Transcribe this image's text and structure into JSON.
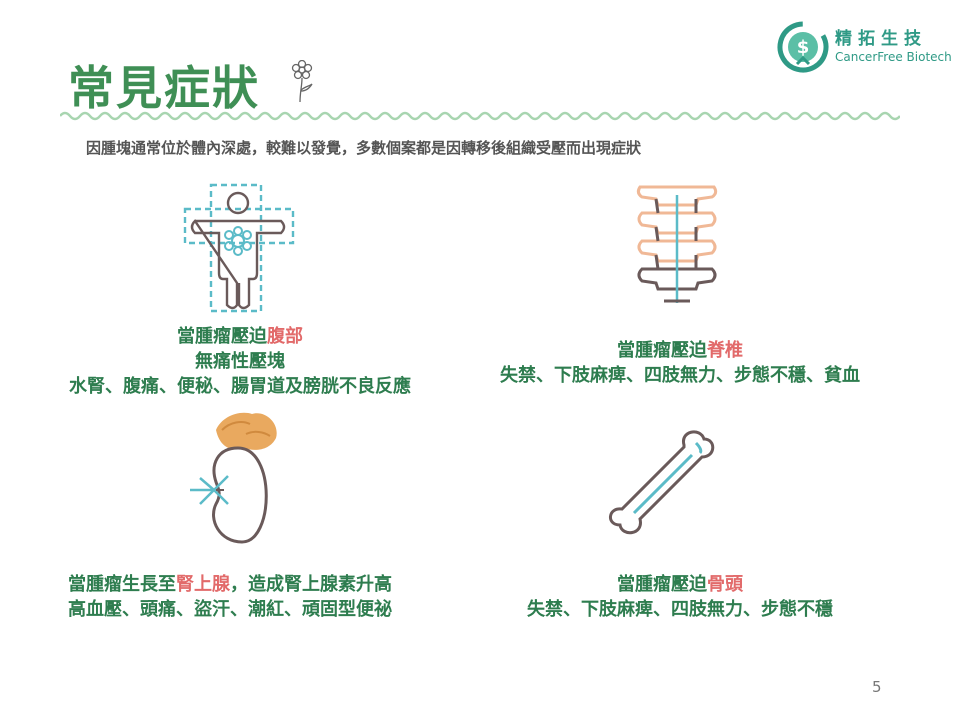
{
  "header": {
    "title": "常見症狀",
    "subtitle": "因腫塊通常位於體內深處，較難以發覺，多數個案都是因轉移後組織受壓而出現症狀"
  },
  "logo": {
    "name_cn": "精拓生技",
    "name_en": "CancerFree Biotech"
  },
  "sections": [
    {
      "prefix": "當腫瘤壓迫",
      "highlight": "腹部",
      "suffix": "",
      "lines": [
        "無痛性壓塊",
        "水腎、腹痛、便秘、腸胃道及膀胱不良反應"
      ],
      "icon": "abdomen-body-icon"
    },
    {
      "prefix": "當腫瘤壓迫",
      "highlight": "脊椎",
      "suffix": "",
      "lines": [
        "失禁、下肢麻痺、四肢無力、步態不穩、貧血"
      ],
      "icon": "spine-icon"
    },
    {
      "prefix": "當腫瘤生長至",
      "highlight": "腎上腺",
      "suffix": "，造成腎上腺素升高",
      "lines": [
        "高血壓、頭痛、盜汗、潮紅、頑固型便祕"
      ],
      "icon": "kidney-adrenal-icon"
    },
    {
      "prefix": "當腫瘤壓迫",
      "highlight": "骨頭",
      "suffix": "",
      "lines": [
        "失禁、下肢麻痺、四肢無力、步態不穩"
      ],
      "icon": "bone-icon"
    }
  ],
  "colors": {
    "title_green": "#3f8f55",
    "caption_green": "#2e7d4f",
    "highlight_red": "#e26a6a",
    "teal": "#2f9a86"
  },
  "page_number": "5"
}
